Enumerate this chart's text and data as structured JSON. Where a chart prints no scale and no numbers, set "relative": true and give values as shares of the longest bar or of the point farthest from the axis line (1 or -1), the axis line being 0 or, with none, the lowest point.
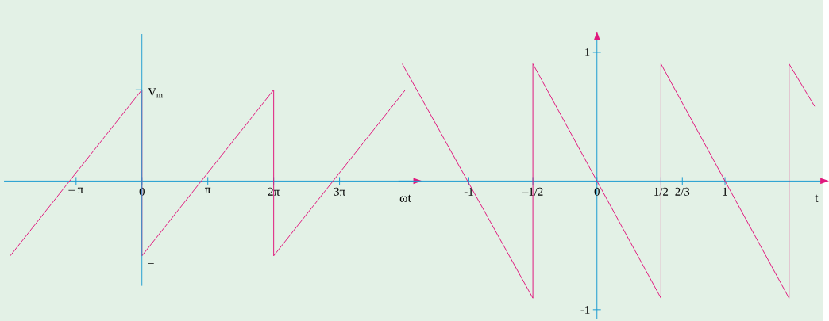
{
  "chart_data": [
    {
      "type": "line",
      "relative": true,
      "xlabel": "ωt",
      "series": [
        {
          "color": "#e0197d",
          "x": [
            -6.2832,
            0,
            0,
            6.2832,
            6.2832,
            12.5664
          ],
          "values": [
            -0.82,
            1,
            -0.82,
            1,
            -0.82,
            1
          ]
        }
      ],
      "xlim": [
        -6.58,
        12.98
      ],
      "ref_lines": [
        {
          "axis": "x",
          "value": 0,
          "color": "#1a9bd0"
        }
      ],
      "xticks": [
        {
          "value": -3.1416,
          "label": "– π"
        },
        0,
        {
          "value": 3.1416,
          "label": "π"
        },
        {
          "value": 6.2832,
          "label": "2π"
        },
        {
          "value": 9.4248,
          "label": "3π"
        }
      ],
      "annotations": [
        {
          "text": "V$_{m}$",
          "x": 0,
          "y": 1
        },
        {
          "text": "–",
          "x": 0,
          "y": -0.82
        }
      ]
    },
    {
      "type": "line",
      "xlabel": "t",
      "series": [
        {
          "color": "#e0197d",
          "x": [
            -1.52,
            -0.5,
            -0.5,
            0.5,
            0.5,
            1.5,
            1.5,
            1.7
          ],
          "values": [
            0.91,
            -0.91,
            0.91,
            -0.91,
            0.91,
            -0.91,
            0.91,
            0.58
          ]
        }
      ],
      "xlim": [
        -1.55,
        1.75
      ],
      "ylim": [
        -1.07,
        1.1
      ],
      "xticks": [
        -1,
        {
          "value": -0.5,
          "label": "–1/2"
        },
        0,
        {
          "value": 0.5,
          "label": "1/2"
        },
        {
          "value": 0.6667,
          "label": "2/3"
        },
        1
      ],
      "yticks": [
        -1,
        1
      ]
    }
  ]
}
